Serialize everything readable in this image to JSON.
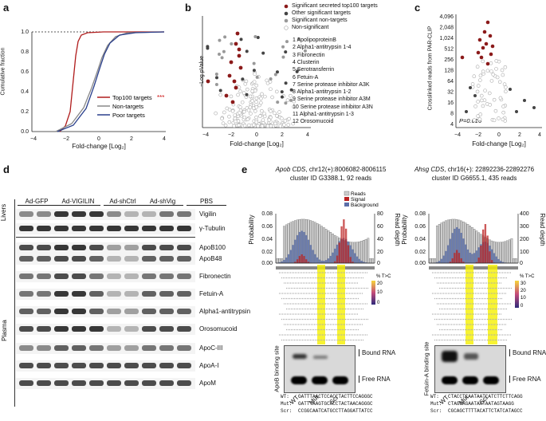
{
  "panels": {
    "a": {
      "label": "a",
      "ylabel": "Cumulative fraction",
      "xlabel": "Fold-change [Log₂]",
      "legend": [
        "Top100 targets",
        "Non-targets",
        "Poor targets"
      ],
      "stars": "***",
      "yticks": [
        "0.0",
        "0.2",
        "0.4",
        "0.6",
        "0.8",
        "1.0"
      ],
      "xticks": [
        "−4",
        "−2",
        "0",
        "2",
        "4"
      ]
    },
    "b": {
      "label": "b",
      "ylabel": "−Log pValue",
      "xlabel": "Fold-change [Log₂]",
      "xticks": [
        "−4",
        "−2",
        "0",
        "2",
        "4"
      ],
      "legend": [
        "Significant secreted top100 targets",
        "Other significant targets",
        "Significant non-targets",
        "Non-significant"
      ],
      "genes": [
        "1 ApolipoproteinB",
        "2 Alpha1-antitrypsin 1-4",
        "3 Fibronectin",
        "4 Clusterin",
        "5 Serotransferrin",
        "6 Fetuin-A",
        "7 Serine protease inhibitor A3K",
        "8 Alpha1-antitrypsin 1-2",
        "9 Serine protease inhibitor A3M",
        "10 Serine protease inhibitor A3N",
        "11 Alpha1-antitrypsin 1-3",
        "12 Orosomucoid"
      ]
    },
    "c": {
      "label": "c",
      "ylabel": "Crosslinked reads from PAR-CLIP",
      "xlabel": "Fold-change [Log₂]",
      "yticks": [
        "4,096",
        "2,048",
        "1,024",
        "512",
        "256",
        "128",
        "64",
        "32",
        "16",
        "8",
        "4"
      ],
      "xticks": [
        "−4",
        "−2",
        "0",
        "2",
        "4"
      ],
      "pvalue": "P=0.016"
    },
    "d": {
      "label": "d",
      "groups": [
        "Ad-GFP",
        "Ad-VIGILIN",
        "Ad-shCtrl",
        "Ad-shVig",
        "PBS"
      ],
      "side_labels": [
        "Livers",
        "Plasma"
      ],
      "bands": [
        "Vigilin",
        "γ-Tubulin",
        "ApoB100",
        "ApoB48",
        "Fibronectin",
        "Fetuin-A",
        "Alpha1-antitrypsin",
        "Orosomucoid",
        "ApoC-III",
        "ApoA-I",
        "ApoM"
      ]
    },
    "e": {
      "label": "e",
      "left_title": "Apob CDS",
      "left_coords": ", chr12(+):8006082-8006115",
      "left_cluster": "cluster ID G3388.1, 92 reads",
      "right_title": "Ahsg CDS",
      "right_coords": ", chr16(+): 22892236-22892276",
      "right_cluster": "cluster ID G6655.1, 435 reads",
      "legend": [
        "Reads",
        "Signal",
        "Background"
      ],
      "prob_label": "Probability",
      "depth_label": "Read depth",
      "prob_ticks": [
        "0.08",
        "0.06",
        "0.04",
        "0.02",
        "0.00"
      ],
      "left_depth_ticks": [
        "80",
        "60",
        "40",
        "20",
        "0"
      ],
      "right_depth_ticks": [
        "400",
        "300",
        "200",
        "100",
        "0"
      ],
      "tc_label": "% T>C",
      "left_tc": [
        "20",
        "10",
        "0"
      ],
      "right_tc": [
        "30",
        "20",
        "10",
        "0"
      ],
      "left_gel_label": "ApoB binding site",
      "right_gel_label": "Fetuin-A binding site",
      "bound": "Bound RNA",
      "free": "Free RNA",
      "lanes": [
        "WT",
        "Mut",
        "Scr"
      ],
      "left_seqs": {
        "wt": "GATTTAACTCCACCTACTTCCAGGGC",
        "mut": "GATTTAAGTGCACCTACTAACAGGGC",
        "scr": "CCGGCAATCATGCCTTAGGATTATCC"
      },
      "right_seqs": {
        "wt": "CTACCTCAATAATCATCTTCTTCAGG",
        "mut": "CTAGGAGAATAATAATAGTAAGG",
        "scr": "CGCAGCTTTTACATTCTATCATAGCC"
      },
      "seq_prefix": {
        "wt": "WT:",
        "mut": "Mut:",
        "scr": "Scr:"
      }
    }
  }
}
